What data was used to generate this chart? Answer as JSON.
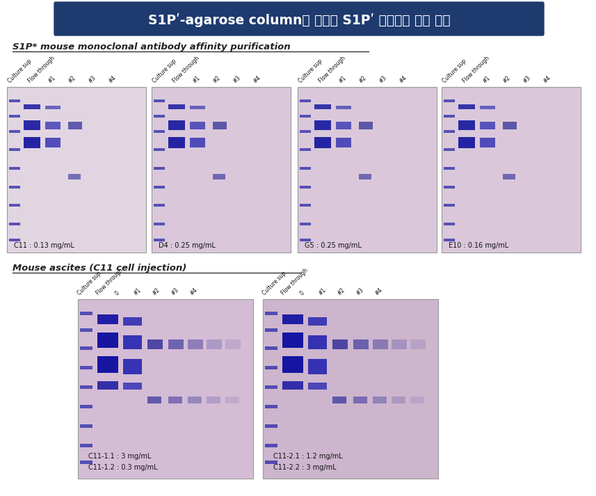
{
  "title_korean": "S1Pʹ-agarose column을 이용한 S1Pʹ 단일클론 항체 정제",
  "subtitle_english": "S1P* mouse monoclonal antibody affinity purification",
  "section2_title": "Mouse ascites (C11 cell injection)",
  "title_bg_color": "#1e3a6e",
  "title_text_color": "#ffffff",
  "background_color": "#ffffff",
  "top_labels": [
    "Culture sup",
    "Flow through",
    "#1",
    "#2",
    "#3",
    "#4"
  ],
  "bottom_labels": [
    "Culture sup",
    "Flow through",
    "0",
    "#1",
    "#2",
    "#3",
    "#4"
  ],
  "gel1_label": "C11 : 0.13 mg/mL",
  "gel2_label": "D4 : 0.25 mg/mL",
  "gel3_label": "G5 : 0.25 mg/mL",
  "gel4_label": "E10 : 0.16 mg/mL",
  "gel5_label": "C11-1.1 : 3 mg/mL\nC11-1.2 : 0.3 mg/mL",
  "gel6_label": "C11-2.1 : 1.2 mg/mL\nC11-2.2 : 3 mg/mL",
  "figure_width": 8.57,
  "figure_height": 7.13
}
